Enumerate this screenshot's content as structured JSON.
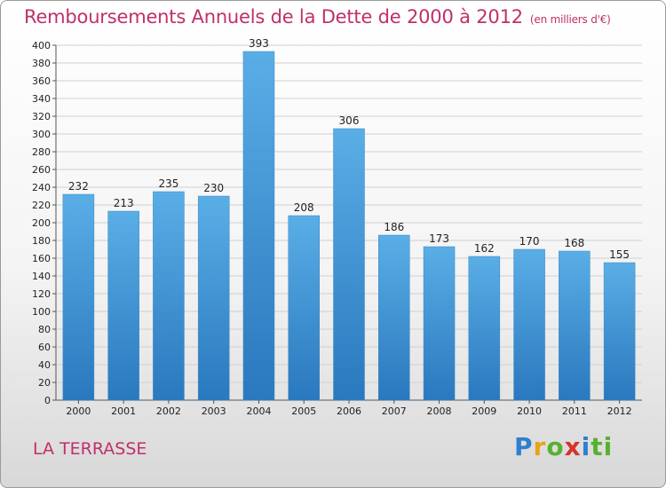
{
  "title": "Remboursements Annuels de la Dette de 2000 à 2012",
  "unit": "(en milliers d'€)",
  "town": "LA TERRASSE",
  "logo": "Proxiti",
  "colors": {
    "bar_top": "#5aaee6",
    "bar_bottom": "#2a78be",
    "title": "#c0306a",
    "grid": "#d0d0d0"
  },
  "chart_data": {
    "type": "bar",
    "categories": [
      "2000",
      "2001",
      "2002",
      "2003",
      "2004",
      "2005",
      "2006",
      "2007",
      "2008",
      "2009",
      "2010",
      "2011",
      "2012"
    ],
    "values": [
      232,
      213,
      235,
      230,
      393,
      208,
      306,
      186,
      173,
      162,
      170,
      168,
      155
    ],
    "title": "Remboursements Annuels de la Dette de 2000 à 2012",
    "ylim": [
      0,
      400
    ],
    "yticks": [
      0,
      20,
      40,
      60,
      80,
      100,
      120,
      140,
      160,
      180,
      200,
      220,
      240,
      260,
      280,
      300,
      320,
      340,
      360,
      380,
      400
    ],
    "grid": true,
    "legend": "none"
  }
}
